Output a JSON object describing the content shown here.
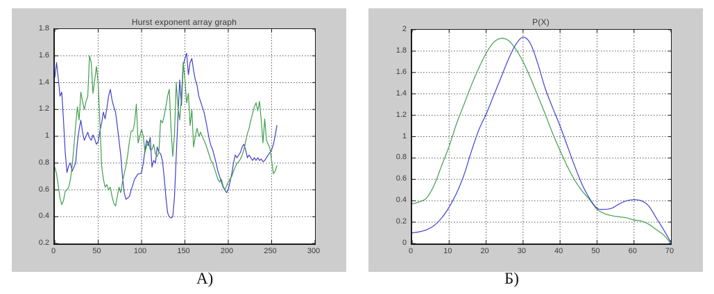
{
  "page": {
    "background": "#ffffff",
    "panel_background": "#cdcdcd",
    "captions": {
      "a": "А)",
      "b": "Б)"
    }
  },
  "chart_data": [
    {
      "id": "chart-a",
      "type": "line",
      "title": "Hurst exponent array graph",
      "xlabel": "",
      "ylabel": "",
      "xlim": [
        0,
        300
      ],
      "ylim": [
        0.2,
        1.8
      ],
      "x_ticks": [
        0,
        50,
        100,
        150,
        200,
        250,
        300
      ],
      "x_tick_labels": [
        "0",
        "50",
        "100",
        "150",
        "200",
        "250",
        "300"
      ],
      "y_ticks": [
        0.2,
        0.4,
        0.6,
        0.8,
        1.0,
        1.2,
        1.4,
        1.6,
        1.8
      ],
      "y_tick_labels": [
        "0.2",
        "0.4",
        "0.6",
        "0.8",
        "1",
        "1.2",
        "1.4",
        "1.6",
        "1.8"
      ],
      "grid": true,
      "legend": null,
      "series": [
        {
          "name": "hurst-series-blue",
          "color": "#3f3fcb",
          "smooth": false,
          "x_start": 0,
          "x_step": 2,
          "values": [
            1.44,
            1.55,
            1.43,
            1.3,
            1.33,
            1.12,
            0.88,
            0.73,
            0.78,
            0.8,
            0.74,
            0.77,
            0.8,
            0.95,
            1.05,
            1.12,
            1.03,
            0.97,
            1.0,
            1.03,
            0.99,
            0.97,
            1.01,
            0.98,
            0.94,
            0.96,
            1.04,
            1.1,
            1.18,
            1.13,
            1.21,
            1.3,
            1.35,
            1.27,
            1.22,
            1.18,
            1.08,
            0.97,
            0.86,
            0.7,
            0.58,
            0.53,
            0.54,
            0.55,
            0.6,
            0.64,
            0.68,
            0.7,
            0.72,
            0.72,
            0.73,
            0.8,
            0.9,
            0.97,
            0.93,
            0.99,
            0.77,
            0.82,
            0.8,
            0.92,
            0.88,
            0.87,
            0.82,
            0.7,
            0.55,
            0.43,
            0.4,
            0.39,
            0.4,
            0.55,
            0.85,
            1.15,
            1.42,
            1.23,
            1.53,
            1.58,
            1.62,
            1.46,
            1.55,
            1.58,
            1.49,
            1.42,
            1.38,
            1.3,
            1.26,
            1.22,
            1.18,
            1.12,
            1.05,
            0.98,
            0.93,
            0.9,
            0.85,
            0.8,
            0.74,
            0.7,
            0.66,
            0.62,
            0.6,
            0.58,
            0.6,
            0.66,
            0.72,
            0.8,
            0.86,
            0.84,
            0.86,
            0.88,
            0.92,
            0.94,
            0.9,
            0.84,
            0.86,
            0.84,
            0.82,
            0.84,
            0.82,
            0.84,
            0.82,
            0.83,
            0.81,
            0.82,
            0.84,
            0.86,
            0.88,
            0.9,
            0.94,
            1.0,
            1.08
          ]
        },
        {
          "name": "hurst-series-green",
          "color": "#3f9e4c",
          "smooth": false,
          "x_start": 0,
          "x_step": 2,
          "values": [
            0.77,
            0.72,
            0.63,
            0.54,
            0.49,
            0.52,
            0.59,
            0.6,
            0.62,
            0.68,
            0.78,
            0.92,
            1.08,
            1.22,
            1.12,
            1.33,
            1.26,
            1.2,
            1.26,
            1.3,
            1.6,
            1.55,
            1.32,
            1.42,
            1.52,
            1.4,
            1.1,
            0.78,
            0.68,
            0.62,
            0.64,
            0.6,
            0.62,
            0.55,
            0.5,
            0.48,
            0.55,
            0.62,
            0.58,
            0.66,
            0.72,
            0.78,
            0.86,
            0.96,
            1.04,
            1.04,
            1.1,
            1.24,
            0.95,
            1.0,
            1.05,
            1.0,
            0.88,
            0.93,
            0.96,
            0.9,
            0.9,
            0.94,
            0.87,
            0.85,
            0.88,
            1.12,
            1.1,
            1.15,
            1.22,
            1.3,
            1.35,
            1.05,
            0.85,
            1.02,
            1.4,
            1.22,
            1.12,
            1.3,
            1.55,
            1.42,
            1.25,
            1.32,
            1.08,
            1.2,
            0.92,
            1.0,
            1.06,
            1.0,
            1.03,
            1.0,
            0.97,
            0.94,
            0.9,
            0.86,
            0.82,
            0.8,
            0.76,
            0.72,
            0.68,
            0.66,
            0.68,
            0.63,
            0.6,
            0.63,
            0.66,
            0.68,
            0.7,
            0.74,
            0.77,
            0.8,
            0.81,
            0.83,
            0.86,
            0.9,
            0.96,
            1.02,
            1.06,
            1.12,
            1.17,
            1.22,
            1.25,
            1.19,
            1.26,
            1.12,
            0.95,
            1.13,
            0.97,
            0.94,
            0.91,
            0.82,
            0.72,
            0.74,
            0.78
          ]
        }
      ]
    },
    {
      "id": "chart-b",
      "type": "line",
      "title": "P(X)",
      "xlabel": "",
      "ylabel": "",
      "xlim": [
        0,
        70
      ],
      "ylim": [
        0,
        2
      ],
      "x_ticks": [
        0,
        10,
        20,
        30,
        40,
        50,
        60,
        70
      ],
      "x_tick_labels": [
        "0",
        "10",
        "20",
        "30",
        "40",
        "50",
        "60",
        "70"
      ],
      "y_ticks": [
        0,
        0.2,
        0.4,
        0.6,
        0.8,
        1.0,
        1.2,
        1.4,
        1.6,
        1.8,
        2.0
      ],
      "y_tick_labels": [
        "0",
        "0.2",
        "0.4",
        "0.6",
        "0.8",
        "1",
        "1.2",
        "1.4",
        "1.6",
        "1.8",
        "2"
      ],
      "grid": true,
      "legend": null,
      "series": [
        {
          "name": "px-series-green",
          "color": "#3f9e4c",
          "smooth": true,
          "x_start": 0,
          "x_step": 2,
          "values": [
            0.37,
            0.39,
            0.43,
            0.55,
            0.73,
            0.91,
            1.12,
            1.3,
            1.48,
            1.64,
            1.78,
            1.88,
            1.92,
            1.9,
            1.82,
            1.7,
            1.55,
            1.38,
            1.21,
            1.03,
            0.87,
            0.72,
            0.59,
            0.49,
            0.41,
            0.32,
            0.28,
            0.26,
            0.25,
            0.24,
            0.22,
            0.21,
            0.18,
            0.13,
            0.08,
            0.0
          ]
        },
        {
          "name": "px-series-blue",
          "color": "#3f3fcb",
          "smooth": true,
          "x_start": 0,
          "x_step": 2,
          "values": [
            0.1,
            0.11,
            0.13,
            0.17,
            0.24,
            0.34,
            0.47,
            0.64,
            0.86,
            1.06,
            1.21,
            1.38,
            1.55,
            1.72,
            1.86,
            1.93,
            1.87,
            1.68,
            1.45,
            1.27,
            1.1,
            0.91,
            0.72,
            0.55,
            0.42,
            0.33,
            0.32,
            0.33,
            0.37,
            0.4,
            0.41,
            0.4,
            0.35,
            0.24,
            0.13,
            0.01
          ]
        }
      ]
    }
  ]
}
